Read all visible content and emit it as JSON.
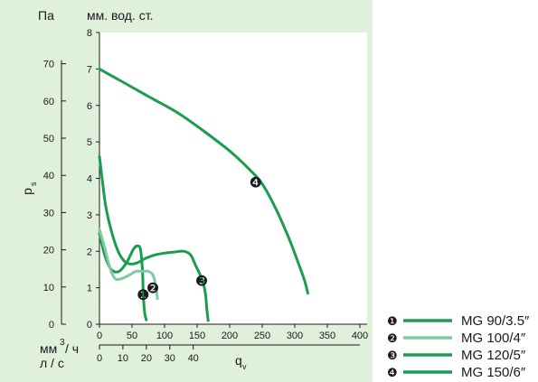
{
  "chart_data": {
    "type": "line",
    "units_left_pa": "Па",
    "units_left_mm": "мм. вод. ст.",
    "ylabel": "p",
    "ylabel_sub": "s",
    "xlabel": "q",
    "xlabel_sub": "v",
    "x_units_primary_base": "мм",
    "x_units_primary_sup": "3",
    "x_units_primary_tail": "/ ч",
    "x_units_secondary": "л / с",
    "y_mm": {
      "lim": [
        0,
        8
      ],
      "ticks": [
        "0",
        "1",
        "2",
        "3",
        "4",
        "5",
        "6",
        "7",
        "8"
      ]
    },
    "y_pa": {
      "lim": [
        0,
        78.4
      ],
      "ticks": [
        {
          "v": 0,
          "label": "0"
        },
        {
          "v": 10,
          "label": "10"
        },
        {
          "v": 20,
          "label": "20"
        },
        {
          "v": 30,
          "label": "30"
        },
        {
          "v": 40,
          "label": "40"
        },
        {
          "v": 50,
          "label": "50"
        },
        {
          "v": 60,
          "label": "60"
        },
        {
          "v": 70,
          "label": "70"
        }
      ]
    },
    "x_m3h": {
      "lim": [
        0,
        400
      ],
      "ticks": [
        "0",
        "50",
        "100",
        "150",
        "200",
        "250",
        "300",
        "350",
        "400"
      ]
    },
    "x_ls": {
      "lim": [
        0,
        111.1
      ],
      "ticks": [
        {
          "v": 0,
          "label": "0"
        },
        {
          "v": 10,
          "label": "10"
        },
        {
          "v": 20,
          "label": "20"
        },
        {
          "v": 30,
          "label": "30"
        },
        {
          "v": 40,
          "label": "40"
        }
      ]
    },
    "grid": false,
    "legend_placement": "bottom-right",
    "series": [
      {
        "name": "MG 90/3.5″",
        "marker": "❶",
        "color": "#1a9e4e",
        "points": [
          [
            0,
            2.5
          ],
          [
            8,
            1.9
          ],
          [
            18,
            1.5
          ],
          [
            30,
            1.45
          ],
          [
            42,
            1.7
          ],
          [
            52,
            2.05
          ],
          [
            58,
            2.15
          ],
          [
            63,
            2.05
          ],
          [
            66,
            1.5
          ],
          [
            67,
            1.0
          ],
          [
            68,
            0.6
          ],
          [
            70,
            0.25
          ],
          [
            72,
            0.12
          ]
        ],
        "label_at": [
          67,
          0.82
        ]
      },
      {
        "name": "MG 100/4″",
        "marker": "❷",
        "color": "#7ecb9f",
        "points": [
          [
            0,
            2.6
          ],
          [
            8,
            2.1
          ],
          [
            16,
            1.55
          ],
          [
            24,
            1.25
          ],
          [
            34,
            1.25
          ],
          [
            46,
            1.35
          ],
          [
            56,
            1.45
          ],
          [
            66,
            1.45
          ],
          [
            75,
            1.45
          ],
          [
            82,
            1.35
          ],
          [
            86,
            1.1
          ],
          [
            88,
            0.85
          ],
          [
            89,
            0.7
          ]
        ],
        "label_at": [
          82,
          1.0
        ]
      },
      {
        "name": "MG 120/5″",
        "marker": "❸",
        "color": "#1a9e4e",
        "points": [
          [
            0,
            4.6
          ],
          [
            4,
            4.0
          ],
          [
            10,
            3.2
          ],
          [
            20,
            2.45
          ],
          [
            30,
            1.95
          ],
          [
            40,
            1.7
          ],
          [
            50,
            1.65
          ],
          [
            60,
            1.7
          ],
          [
            70,
            1.8
          ],
          [
            85,
            1.9
          ],
          [
            100,
            1.95
          ],
          [
            115,
            1.98
          ],
          [
            130,
            2.0
          ],
          [
            140,
            1.9
          ],
          [
            148,
            1.6
          ],
          [
            156,
            1.3
          ],
          [
            160,
            1.1
          ],
          [
            163,
            0.8
          ],
          [
            165,
            0.4
          ],
          [
            167,
            0.1
          ]
        ],
        "label_at": [
          157,
          1.2
        ]
      },
      {
        "name": "MG 150/6″",
        "marker": "❹",
        "color": "#1a9e4e",
        "points": [
          [
            0,
            7.0
          ],
          [
            40,
            6.6
          ],
          [
            80,
            6.2
          ],
          [
            120,
            5.8
          ],
          [
            160,
            5.3
          ],
          [
            200,
            4.75
          ],
          [
            230,
            4.25
          ],
          [
            250,
            3.85
          ],
          [
            270,
            3.2
          ],
          [
            290,
            2.4
          ],
          [
            305,
            1.7
          ],
          [
            315,
            1.2
          ],
          [
            320,
            0.85
          ]
        ],
        "label_at": [
          240,
          3.9
        ]
      }
    ]
  }
}
